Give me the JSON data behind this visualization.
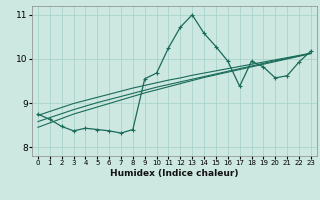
{
  "xlabel": "Humidex (Indice chaleur)",
  "bg_color": "#cce8e0",
  "line_color": "#1a6b5a",
  "grid_color": "#aad4cc",
  "x_data": [
    0,
    1,
    2,
    3,
    4,
    5,
    6,
    7,
    8,
    9,
    10,
    11,
    12,
    13,
    14,
    15,
    16,
    17,
    18,
    19,
    20,
    21,
    22,
    23
  ],
  "y_main": [
    8.75,
    8.63,
    8.47,
    8.37,
    8.43,
    8.4,
    8.37,
    8.32,
    8.4,
    9.55,
    9.68,
    10.25,
    10.72,
    11.0,
    10.58,
    10.28,
    9.95,
    9.38,
    9.95,
    9.82,
    9.57,
    9.62,
    9.93,
    10.18
  ],
  "y_trend1": [
    8.72,
    8.81,
    8.9,
    8.99,
    9.06,
    9.13,
    9.2,
    9.27,
    9.34,
    9.4,
    9.46,
    9.52,
    9.57,
    9.63,
    9.68,
    9.73,
    9.78,
    9.83,
    9.88,
    9.93,
    9.98,
    10.03,
    10.08,
    10.13
  ],
  "y_trend2": [
    8.58,
    8.67,
    8.76,
    8.85,
    8.93,
    9.01,
    9.08,
    9.15,
    9.22,
    9.29,
    9.36,
    9.42,
    9.48,
    9.54,
    9.6,
    9.66,
    9.72,
    9.78,
    9.84,
    9.9,
    9.96,
    10.01,
    10.07,
    10.13
  ],
  "y_trend3": [
    8.45,
    8.55,
    8.65,
    8.75,
    8.83,
    8.91,
    8.99,
    9.07,
    9.15,
    9.23,
    9.3,
    9.37,
    9.44,
    9.51,
    9.58,
    9.64,
    9.7,
    9.76,
    9.82,
    9.88,
    9.94,
    10.0,
    10.06,
    10.12
  ],
  "ylim": [
    7.8,
    11.2
  ],
  "xlim": [
    -0.5,
    23.5
  ],
  "yticks": [
    8,
    9,
    10,
    11
  ],
  "xticks": [
    0,
    1,
    2,
    3,
    4,
    5,
    6,
    7,
    8,
    9,
    10,
    11,
    12,
    13,
    14,
    15,
    16,
    17,
    18,
    19,
    20,
    21,
    22,
    23
  ],
  "figsize": [
    3.2,
    2.0
  ],
  "dpi": 100
}
